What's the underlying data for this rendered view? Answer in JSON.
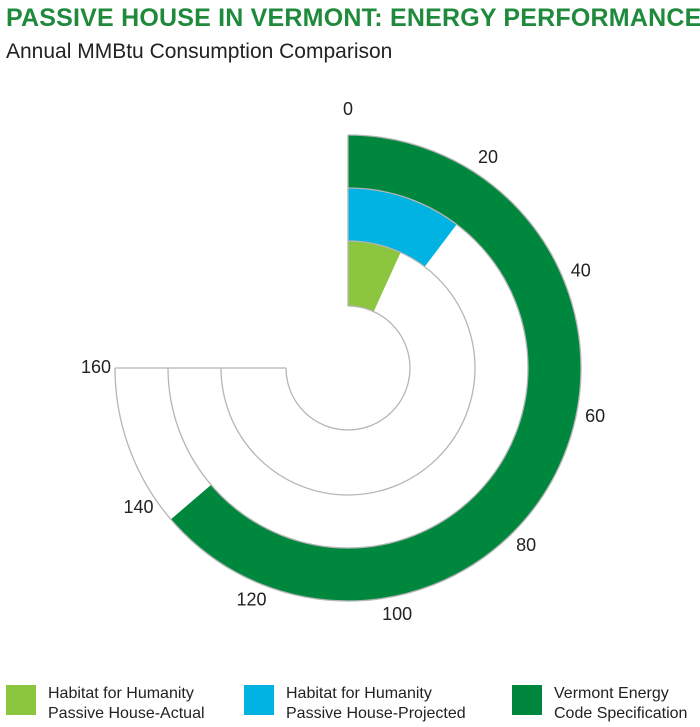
{
  "title": "PASSIVE HOUSE IN VERMONT: ENERGY PERFORMANCE",
  "subtitle": "Annual MMBtu Consumption Comparison",
  "chart_data": {
    "type": "radial-bar",
    "title": "PASSIVE HOUSE IN VERMONT: ENERGY PERFORMANCE",
    "subtitle": "Annual MMBtu Consumption Comparison",
    "axis": {
      "min": 0,
      "max": 160,
      "ticks": [
        0,
        20,
        40,
        60,
        80,
        100,
        120,
        140,
        160
      ]
    },
    "series": [
      {
        "name": "Habitat for Humanity\nPassive House-Actual",
        "value": 14.5,
        "color": "#8cc63f"
      },
      {
        "name": "Habitat for Humanity\nPassive House-Projected",
        "value": 22,
        "color": "#00b3e3"
      },
      {
        "name": "Vermont Energy\nCode Specification",
        "value": 136,
        "color": "#00873e"
      }
    ],
    "legend_position": "bottom",
    "grid": false
  }
}
